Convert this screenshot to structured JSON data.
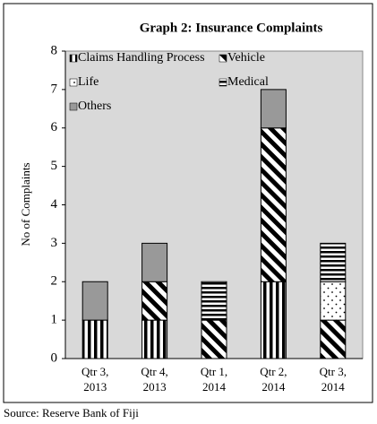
{
  "chart_data": {
    "type": "stacked_bar",
    "title": "Graph 2: Insurance Complaints",
    "y_label": "No of Complaints",
    "source": "Source: Reserve Bank of Fiji",
    "categories": [
      "Qtr 3, 2013",
      "Qtr 4, 2013",
      "Qtr 1, 2014",
      "Qtr 2, 2014",
      "Qtr 3, 2014"
    ],
    "series": [
      {
        "name": "Claims Handling Process",
        "color": "#000000",
        "pattern": "vertical",
        "values": [
          1,
          1,
          0,
          2,
          0
        ]
      },
      {
        "name": "Vehicle",
        "color": "#000000",
        "pattern": "diagonal",
        "values": [
          0,
          1,
          1,
          4,
          1
        ]
      },
      {
        "name": "Life",
        "color": "#000000",
        "pattern": "dots",
        "values": [
          0,
          0,
          0,
          0,
          1
        ]
      },
      {
        "name": "Medical",
        "color": "#000000",
        "pattern": "horizontal",
        "values": [
          0,
          0,
          1,
          0,
          1
        ]
      },
      {
        "name": "Others",
        "color": "#999999",
        "pattern": "solid",
        "values": [
          1,
          1,
          0,
          1,
          0
        ]
      }
    ],
    "ylim": [
      0,
      8
    ],
    "yticks": [
      0,
      1,
      2,
      3,
      4,
      5,
      6,
      7,
      8
    ],
    "legend": "upper left",
    "plot_background": "#d9d9d9"
  }
}
